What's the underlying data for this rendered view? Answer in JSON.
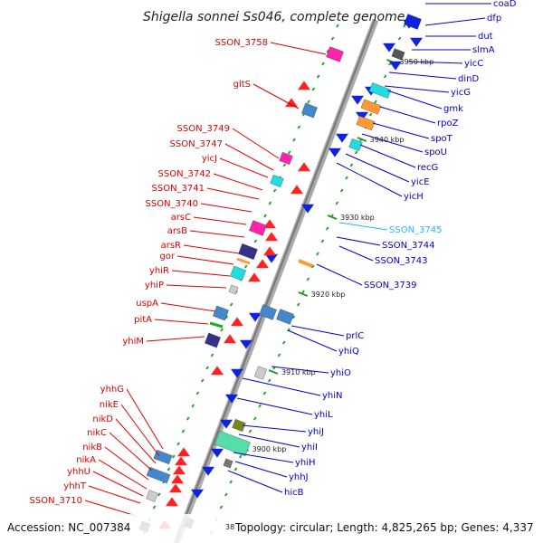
{
  "title": "Shigella sonnei Ss046, complete genome",
  "footer": {
    "accession": "Accession: NC_007384",
    "topology": "Topology: circular; Length: 4,825,265 bp; Genes: 4,337",
    "partial_tick": "38"
  },
  "colors": {
    "left_label": "#dd0000",
    "right_label": "#0000cc",
    "highlight_label": "#22bbee",
    "backbone": "#888888",
    "tick": "#22aa22"
  },
  "kbp_ticks": [
    "3950 kbp",
    "3940 kbp",
    "3930 kbp",
    "3920 kbp",
    "3910 kbp",
    "3900 kbp"
  ],
  "left_labels": [
    "SSON_3758",
    "gltS",
    "SSON_3749",
    "SSON_3747",
    "yicJ",
    "SSON_3742",
    "SSON_3741",
    "SSON_3740",
    "arsC",
    "arsB",
    "arsR",
    "gor",
    "yhiR",
    "yhiP",
    "uspA",
    "pitA",
    "yhiM",
    "yhhG",
    "nikE",
    "nikD",
    "nikC",
    "nikB",
    "nikA",
    "yhhU",
    "yhhT",
    "SSON_3710"
  ],
  "right_labels": [
    "coaD",
    "dfp",
    "dut",
    "slmA",
    "yicC",
    "dinD",
    "yicG",
    "gmk",
    "rpoZ",
    "spoT",
    "spoU",
    "recG",
    "yicE",
    "yicH",
    "SSON_3745",
    "SSON_3744",
    "SSON_3743",
    "SSON_3739",
    "prlC",
    "yhiQ",
    "yhiO",
    "yhiN",
    "yhiL",
    "yhiJ",
    "yhiI",
    "yhiH",
    "yhhJ",
    "hicB"
  ]
}
